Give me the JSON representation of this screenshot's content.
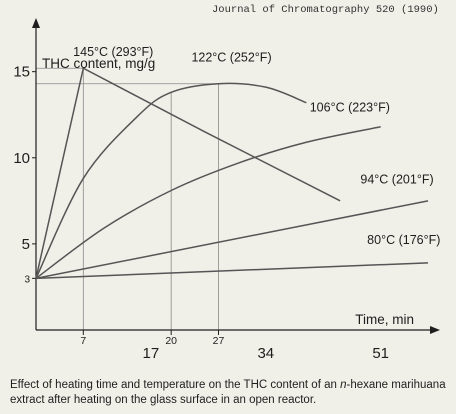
{
  "header": {
    "journal": "Journal of Chromatography 520 (1990)"
  },
  "caption": {
    "before": "Effect of heating time and temperature on the THC content of an ",
    "italic": "n",
    "after": "-hexane marihuana extract after heating on the glass surface in an open reactor."
  },
  "chart_data": {
    "type": "line",
    "ylabel": "THC content, mg/g",
    "xlabel": "Time, min",
    "xlim": [
      0,
      58
    ],
    "ylim": [
      0,
      18
    ],
    "y_ticks": [
      3,
      5,
      10,
      15
    ],
    "x_ticks_major": [
      17,
      34,
      51
    ],
    "x_ticks_minor": [
      7,
      20,
      27
    ],
    "grid": false,
    "series": [
      {
        "name": "145°C (293°F)",
        "color": "#555555",
        "x": [
          0,
          7,
          25,
          45
        ],
        "y": [
          3,
          15.2,
          11.5,
          7.5
        ]
      },
      {
        "name": "122°C (252°F)",
        "color": "#555555",
        "x": [
          0,
          7,
          15,
          20,
          27,
          34,
          40
        ],
        "y": [
          3,
          8.8,
          12.4,
          13.8,
          14.3,
          14.1,
          13.2
        ]
      },
      {
        "name": "106°C (223°F)",
        "color": "#555555",
        "x": [
          0,
          10,
          20,
          30,
          40,
          51
        ],
        "y": [
          3,
          5.9,
          8.1,
          9.7,
          10.9,
          11.8
        ]
      },
      {
        "name": "94°C (201°F)",
        "color": "#555555",
        "x": [
          0,
          58
        ],
        "y": [
          3,
          7.5
        ]
      },
      {
        "name": "80°C (176°F)",
        "color": "#555555",
        "x": [
          0,
          58
        ],
        "y": [
          3,
          3.9
        ]
      }
    ],
    "reference_lines": [
      {
        "type": "h",
        "y": 15.2,
        "x_from": 0,
        "x_to": 7
      },
      {
        "type": "h",
        "y": 14.3,
        "x_from": 0,
        "x_to": 27
      },
      {
        "type": "v",
        "x": 7,
        "y_from": 0,
        "y_to": 15.2
      },
      {
        "type": "v",
        "x": 20,
        "y_from": 0,
        "y_to": 13.8
      },
      {
        "type": "v",
        "x": 27,
        "y_from": 0,
        "y_to": 14.3
      }
    ],
    "annotations": [
      {
        "text": "145°C (293°F)",
        "x": 5.5,
        "y": 15.9
      },
      {
        "text": "122°C (252°F)",
        "x": 23,
        "y": 15.6
      },
      {
        "text": "106°C (223°F)",
        "x": 40.5,
        "y": 12.7
      },
      {
        "text": "94°C (201°F)",
        "x": 48,
        "y": 8.5
      },
      {
        "text": "80°C (176°F)",
        "x": 49,
        "y": 5.0
      }
    ]
  }
}
